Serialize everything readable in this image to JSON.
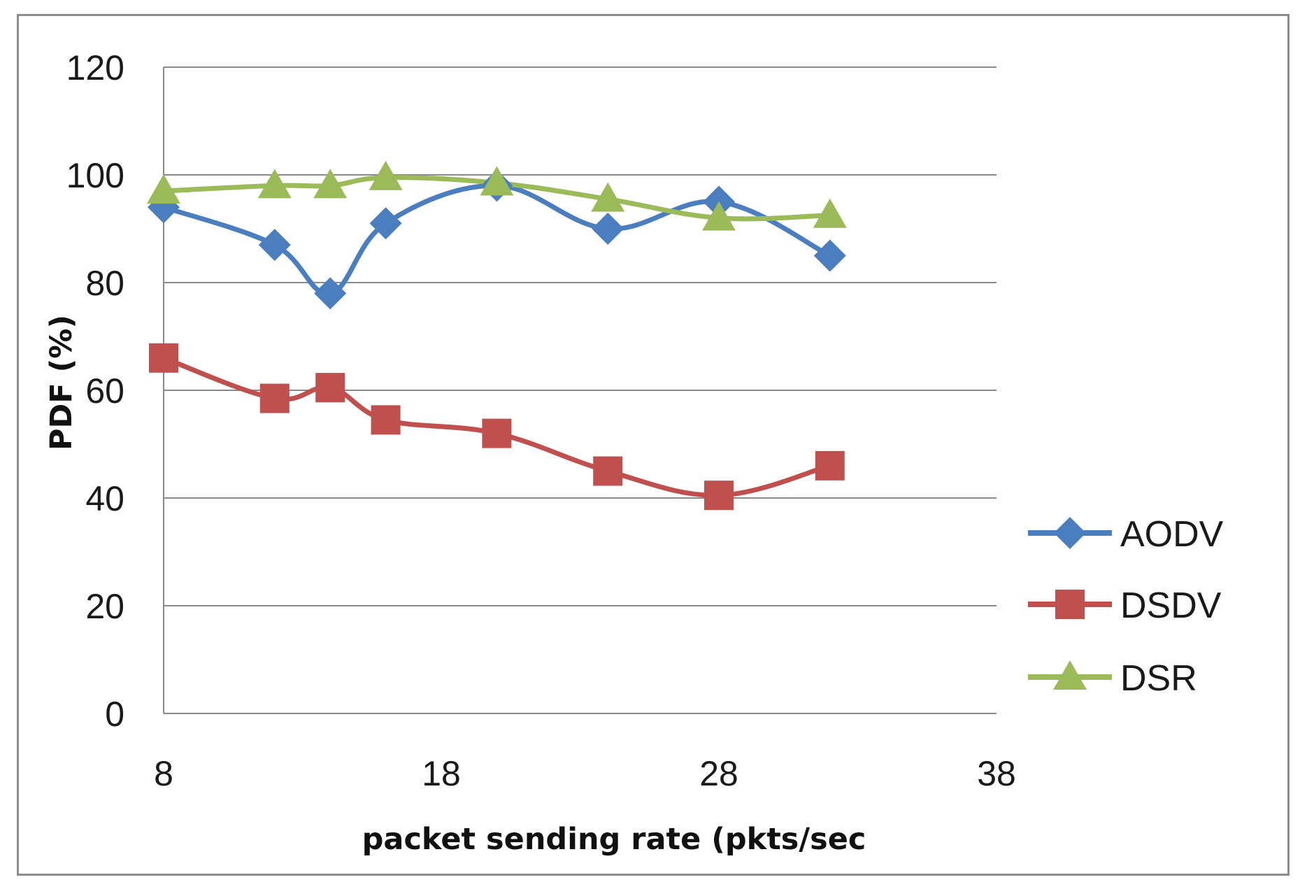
{
  "chart_data": {
    "type": "line",
    "title": "",
    "xlabel": "packet sending rate (pkts/sec",
    "ylabel": "PDF (%)",
    "xlim": [
      8,
      38
    ],
    "ylim": [
      0,
      120
    ],
    "xticks": [
      8,
      18,
      28,
      38
    ],
    "yticks": [
      0,
      20,
      40,
      60,
      80,
      100,
      120
    ],
    "grid": "horizontal",
    "legend_position": "right",
    "series": [
      {
        "name": "AODV",
        "color": "#4a7ebf",
        "marker": "diamond",
        "x": [
          8,
          12,
          14,
          16,
          20,
          24,
          28,
          32
        ],
        "y": [
          94,
          87,
          78,
          91,
          98,
          90,
          95,
          85
        ]
      },
      {
        "name": "DSDV",
        "color": "#c0504d",
        "marker": "square",
        "x": [
          8,
          12,
          14,
          16,
          20,
          24,
          28,
          32
        ],
        "y": [
          66,
          58.5,
          60.5,
          54.5,
          52,
          45,
          40.5,
          46
        ]
      },
      {
        "name": "DSR",
        "color": "#9bbb59",
        "marker": "triangle",
        "x": [
          8,
          12,
          14,
          16,
          20,
          24,
          28,
          32
        ],
        "y": [
          97,
          98,
          98,
          99.5,
          98.5,
          95.5,
          92,
          92.5
        ]
      }
    ]
  }
}
